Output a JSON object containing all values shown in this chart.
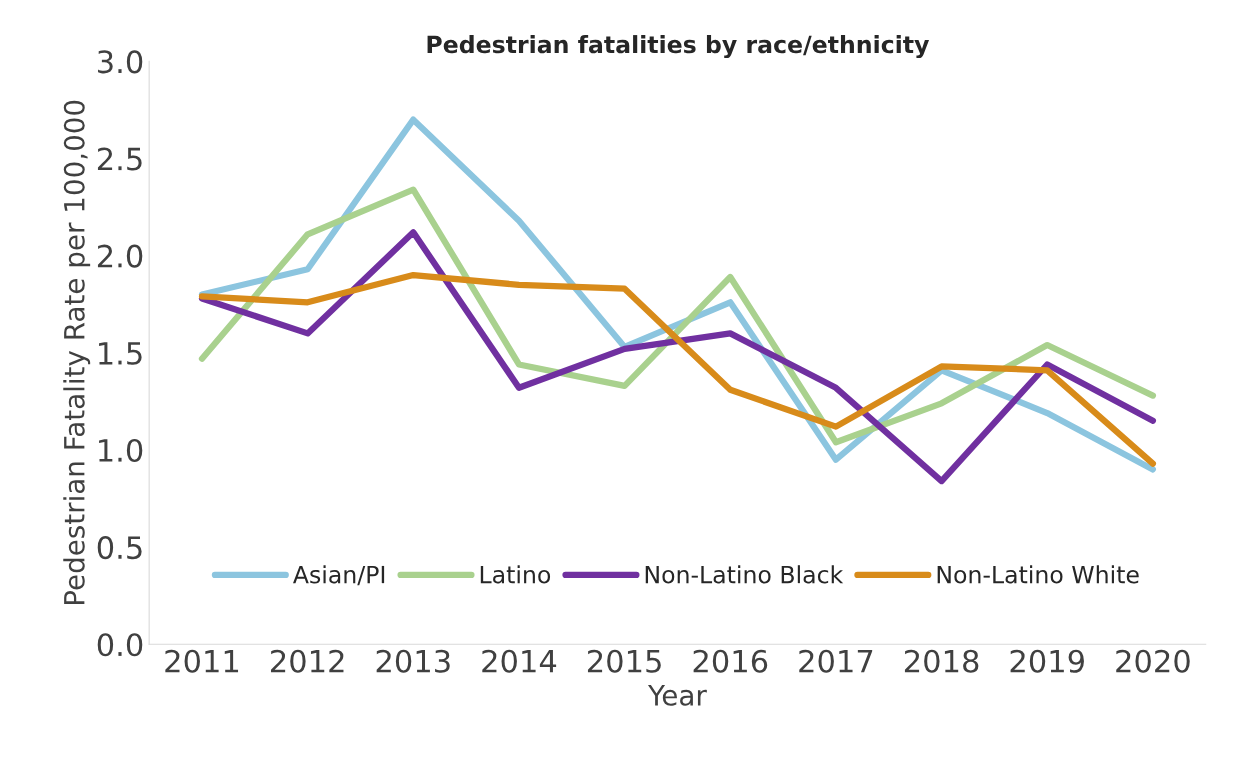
{
  "chart_data": {
    "type": "line",
    "title": "Pedestrian fatalities by race/ethnicity",
    "xlabel": "Year",
    "ylabel": "Pedestrian Fatality Rate per 100,000",
    "categories": [
      "2011",
      "2012",
      "2013",
      "2014",
      "2015",
      "2016",
      "2017",
      "2018",
      "2019",
      "2020"
    ],
    "ylim": [
      0,
      3
    ],
    "yticks": [
      {
        "value": 0,
        "label": "0.0"
      },
      {
        "value": 0.5,
        "label": "0.5"
      },
      {
        "value": 1,
        "label": "1.0"
      },
      {
        "value": 1.5,
        "label": "1.5"
      },
      {
        "value": 2,
        "label": "2.0"
      },
      {
        "value": 2.5,
        "label": "2.5"
      },
      {
        "value": 3,
        "label": "3.0"
      }
    ],
    "grid": false,
    "legend": "bottom",
    "marker": "none",
    "line_style": "solid",
    "series": [
      {
        "name": "Asian/PI",
        "color": "#8cc5df",
        "values": [
          1.8,
          1.93,
          2.7,
          2.18,
          1.53,
          1.76,
          0.95,
          1.41,
          1.19,
          0.9
        ]
      },
      {
        "name": "Latino",
        "color": "#a9d18e",
        "values": [
          1.47,
          2.11,
          2.34,
          1.44,
          1.33,
          1.89,
          1.04,
          1.24,
          1.54,
          1.28
        ]
      },
      {
        "name": "Non-Latino Black",
        "color": "#7030a0",
        "values": [
          1.78,
          1.6,
          2.12,
          1.32,
          1.52,
          1.6,
          1.32,
          0.84,
          1.44,
          1.15
        ]
      },
      {
        "name": "Non-Latino White",
        "color": "#d88b1a",
        "values": [
          1.79,
          1.76,
          1.9,
          1.85,
          1.83,
          1.31,
          1.12,
          1.43,
          1.41,
          0.93
        ]
      }
    ]
  }
}
